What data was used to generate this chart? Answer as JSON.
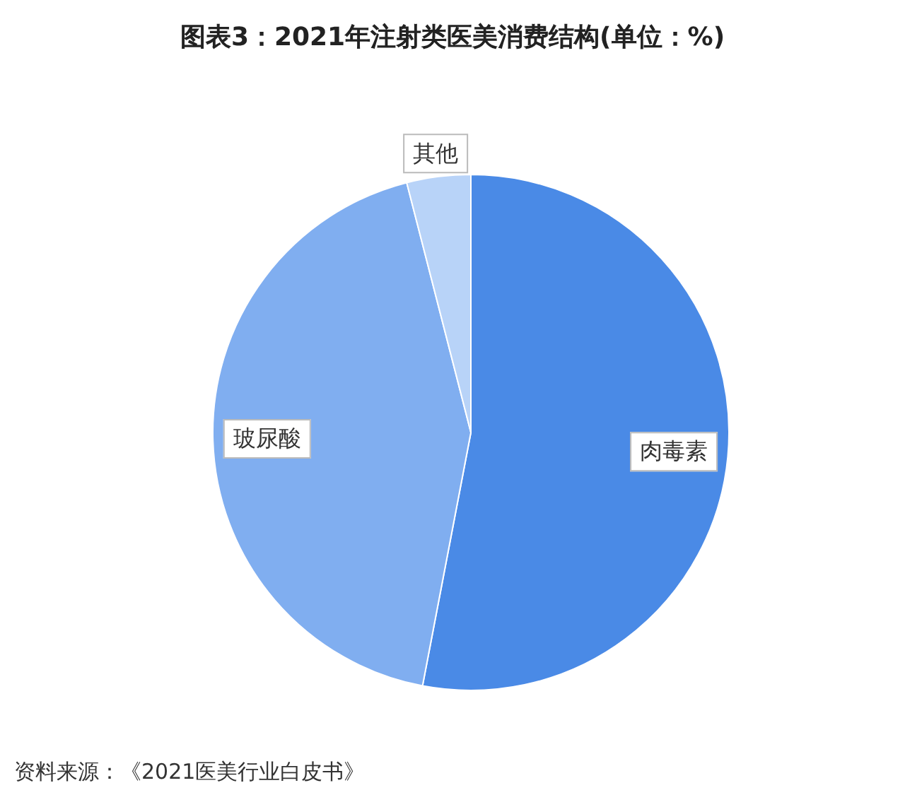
{
  "chart_data": {
    "type": "pie",
    "title": "图表3：2021年注射类医美消费结构(单位：%)",
    "categories": [
      "肉毒素",
      "玻尿酸",
      "其他"
    ],
    "values": [
      53,
      43,
      4
    ],
    "colors": [
      "#4a8ae6",
      "#80aef0",
      "#b8d3f8"
    ],
    "annotations": [
      "资料来源：《2021医美行业白皮书》"
    ]
  }
}
